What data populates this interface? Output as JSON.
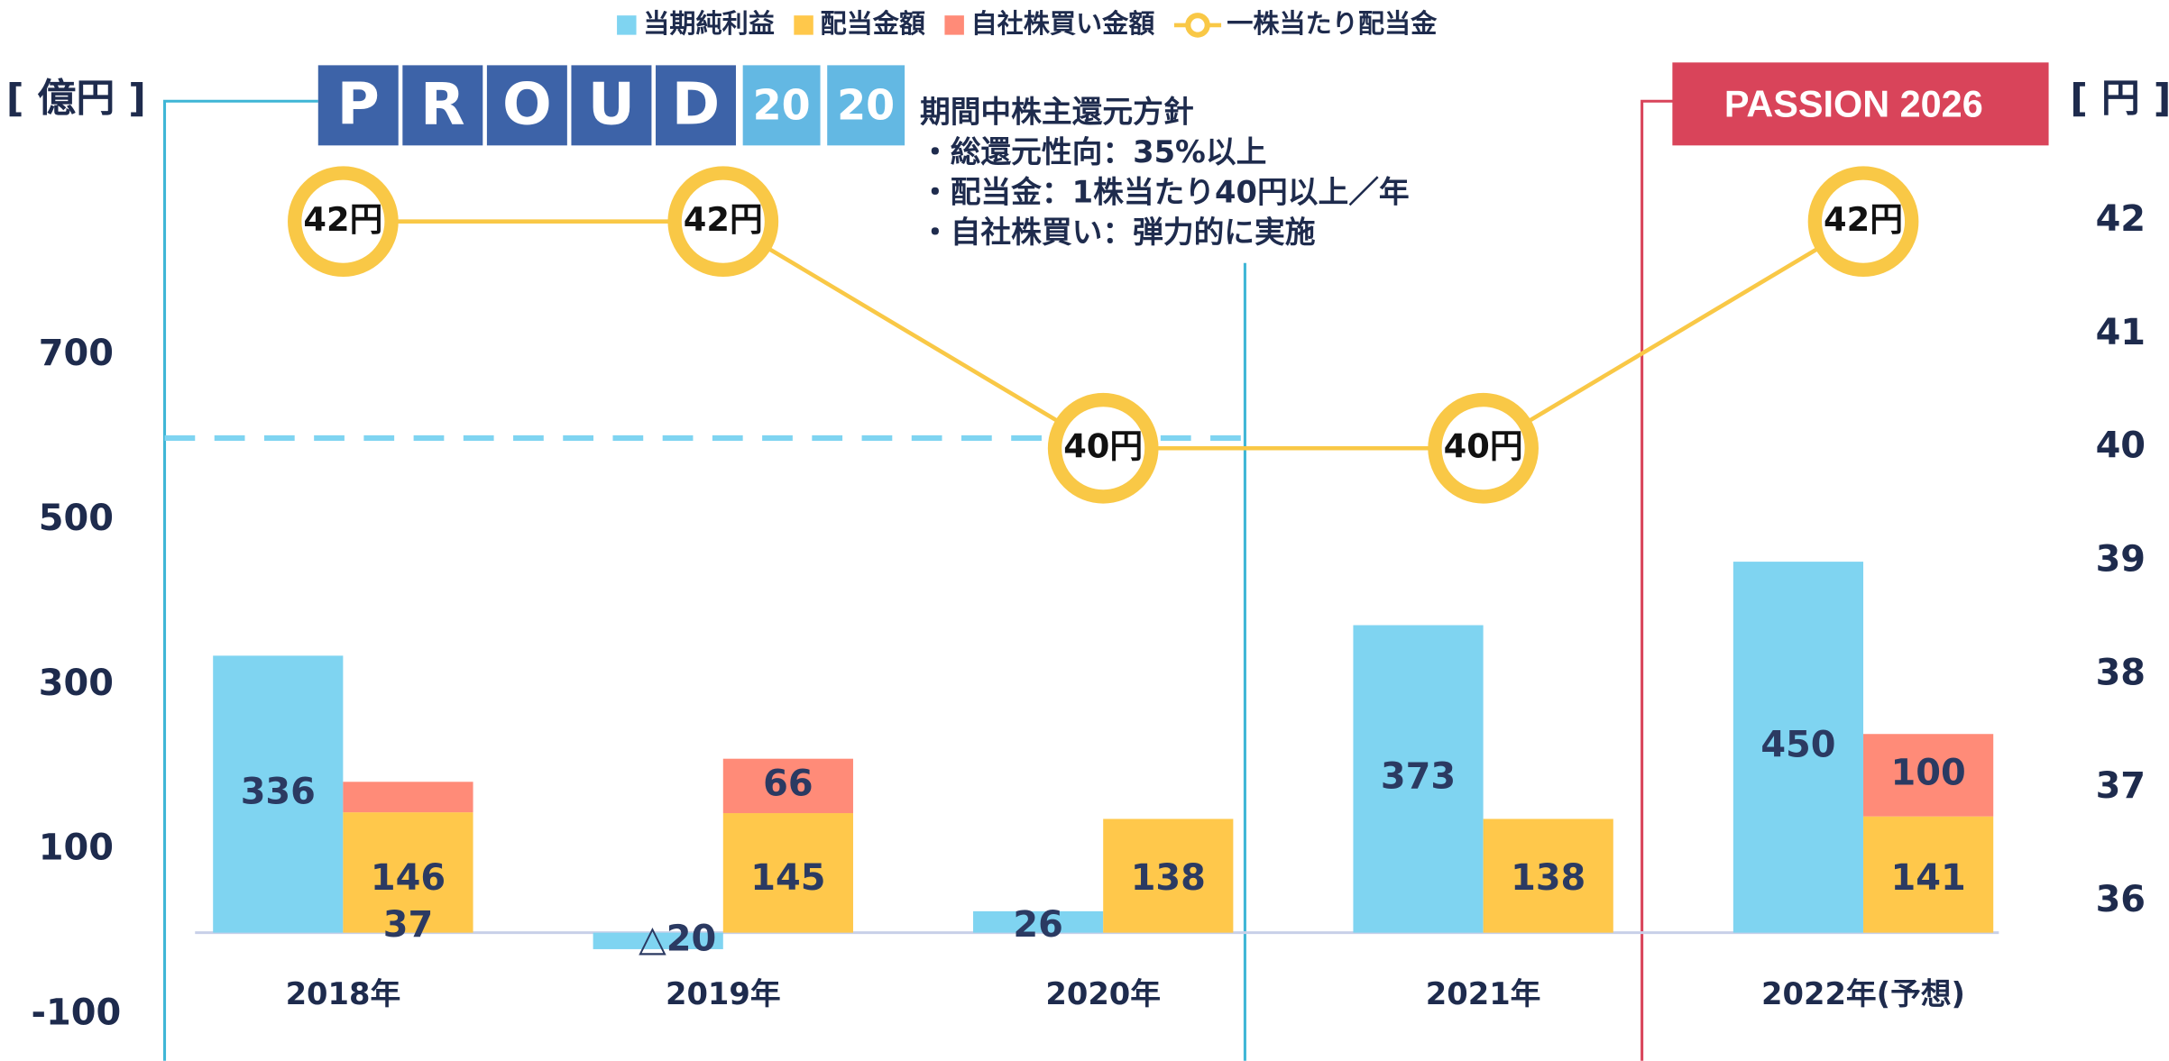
{
  "chart_data": {
    "type": "bar",
    "legend_position": "top",
    "y_unit_label": "[ 億円 ]",
    "y2_unit_label": "[ 円 ]",
    "categories": [
      "2018年",
      "2019年",
      "2020年",
      "2021年",
      "2022年(予想)"
    ],
    "series": [
      {
        "name": "当期純利益",
        "color": "#7fd4f1",
        "stack": "a",
        "values": [
          336,
          -20,
          26,
          373,
          450
        ],
        "value_labels": [
          "336",
          "△20",
          "26",
          "373",
          "450"
        ]
      },
      {
        "name": "配当金額",
        "color": "#ffc84b",
        "stack": "b",
        "values": [
          146,
          145,
          138,
          138,
          141
        ]
      },
      {
        "name": "自社株買い金額",
        "color": "#ff8b78",
        "stack": "b",
        "values": [
          37,
          66,
          null,
          null,
          100
        ]
      },
      {
        "name": "一株当たり配当金",
        "type": "line",
        "axis": "y2",
        "color": "#f9c846",
        "values": [
          42,
          42,
          40,
          40,
          42
        ],
        "value_labels": [
          "42円",
          "42円",
          "40円",
          "40円",
          "42円"
        ]
      }
    ],
    "ylim": [
      -100,
      700
    ],
    "yticks": [
      -100,
      100,
      300,
      500,
      700
    ],
    "y2lim": [
      36,
      42
    ],
    "y2ticks": [
      36,
      37,
      38,
      39,
      40,
      41,
      42
    ],
    "reference_line": 600,
    "annotations": {
      "proud": {
        "letters": [
          "P",
          "R",
          "O",
          "U",
          "D"
        ],
        "year": [
          "20",
          "20"
        ]
      },
      "policy": {
        "title": "期間中株主還元方針",
        "items": [
          "・総還元性向：35%以上",
          "・配当金：1株当たり40円以上／年",
          "・自社株買い：弾力的に実施"
        ]
      },
      "passion": "PASSION 2026"
    }
  }
}
